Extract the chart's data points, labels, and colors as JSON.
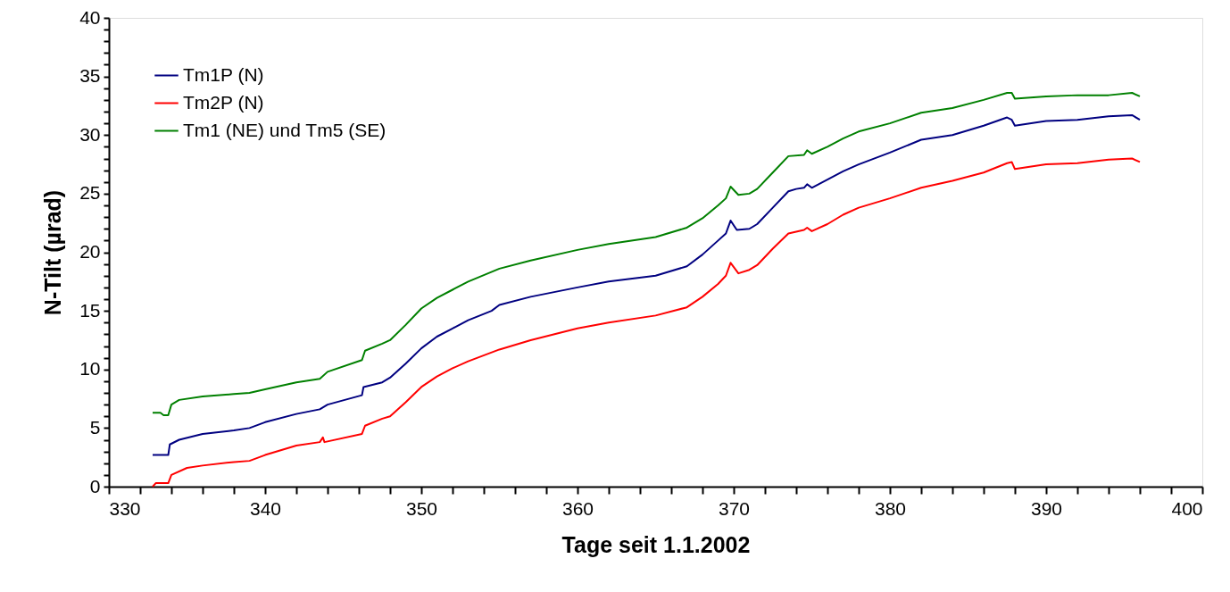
{
  "chart_data": {
    "type": "line",
    "xlabel": "Tage seit 1.1.2002",
    "ylabel": "N-Tilt (µrad)",
    "xlim": [
      330,
      400
    ],
    "ylim": [
      0,
      40
    ],
    "xticks": [
      330,
      {
        "value": 332,
        "label": null
      },
      {
        "value": 334,
        "label": null
      },
      {
        "value": 336,
        "label": null
      },
      {
        "value": 338,
        "label": null
      },
      340,
      {
        "value": 342,
        "label": null
      },
      {
        "value": 344,
        "label": null
      },
      {
        "value": 346,
        "label": null
      },
      {
        "value": 348,
        "label": null
      },
      350,
      {
        "value": 352,
        "label": null
      },
      {
        "value": 354,
        "label": null
      },
      {
        "value": 356,
        "label": null
      },
      {
        "value": 358,
        "label": null
      },
      360,
      {
        "value": 362,
        "label": null
      },
      {
        "value": 364,
        "label": null
      },
      {
        "value": 366,
        "label": null
      },
      {
        "value": 368,
        "label": null
      },
      370,
      {
        "value": 372,
        "label": null
      },
      {
        "value": 374,
        "label": null
      },
      {
        "value": 376,
        "label": null
      },
      {
        "value": 378,
        "label": null
      },
      380,
      {
        "value": 382,
        "label": null
      },
      {
        "value": 384,
        "label": null
      },
      {
        "value": 386,
        "label": null
      },
      {
        "value": 388,
        "label": null
      },
      390,
      {
        "value": 392,
        "label": null
      },
      {
        "value": 394,
        "label": null
      },
      {
        "value": 396,
        "label": null
      },
      {
        "value": 398,
        "label": null
      },
      400
    ],
    "yticks": [
      0,
      {
        "value": 1,
        "label": null
      },
      {
        "value": 2,
        "label": null
      },
      {
        "value": 3,
        "label": null
      },
      {
        "value": 4,
        "label": null
      },
      5,
      {
        "value": 6,
        "label": null
      },
      {
        "value": 7,
        "label": null
      },
      {
        "value": 8,
        "label": null
      },
      {
        "value": 9,
        "label": null
      },
      10,
      {
        "value": 11,
        "label": null
      },
      {
        "value": 12,
        "label": null
      },
      {
        "value": 13,
        "label": null
      },
      {
        "value": 14,
        "label": null
      },
      15,
      {
        "value": 16,
        "label": null
      },
      {
        "value": 17,
        "label": null
      },
      {
        "value": 18,
        "label": null
      },
      {
        "value": 19,
        "label": null
      },
      20,
      {
        "value": 21,
        "label": null
      },
      {
        "value": 22,
        "label": null
      },
      {
        "value": 23,
        "label": null
      },
      {
        "value": 24,
        "label": null
      },
      25,
      {
        "value": 26,
        "label": null
      },
      {
        "value": 27,
        "label": null
      },
      {
        "value": 28,
        "label": null
      },
      {
        "value": 29,
        "label": null
      },
      30,
      {
        "value": 31,
        "label": null
      },
      {
        "value": 32,
        "label": null
      },
      {
        "value": 33,
        "label": null
      },
      {
        "value": 34,
        "label": null
      },
      35,
      {
        "value": 36,
        "label": null
      },
      {
        "value": 37,
        "label": null
      },
      {
        "value": 38,
        "label": null
      },
      {
        "value": 39,
        "label": null
      },
      40
    ],
    "grid": false,
    "legend": "top left",
    "line_style": "solid",
    "marker": "none",
    "series": [
      {
        "name": "Tm1P (N)",
        "color": "#000080",
        "x": [
          332.8,
          333.8,
          333.9,
          334.5,
          336,
          338,
          339,
          340,
          342,
          343.5,
          344,
          346.2,
          346.3,
          347.5,
          348,
          349,
          350,
          351,
          352,
          353,
          354.5,
          355,
          357,
          360,
          362,
          365,
          367,
          368,
          369,
          369.5,
          369.8,
          370.2,
          371,
          371.5,
          372.5,
          373.5,
          374,
          374.5,
          374.7,
          375,
          376,
          377,
          378,
          380,
          382,
          384,
          386,
          387.5,
          387.8,
          388,
          390,
          392,
          394,
          395.5,
          396
        ],
        "values": [
          2.7,
          2.7,
          3.6,
          4.0,
          4.5,
          4.8,
          5.0,
          5.5,
          6.2,
          6.6,
          7.0,
          7.8,
          8.5,
          8.9,
          9.3,
          10.5,
          11.8,
          12.8,
          13.5,
          14.2,
          15.0,
          15.5,
          16.2,
          17.0,
          17.5,
          18.0,
          18.8,
          19.8,
          21.0,
          21.6,
          22.7,
          21.9,
          22.0,
          22.4,
          23.8,
          25.2,
          25.4,
          25.5,
          25.8,
          25.5,
          26.2,
          26.9,
          27.5,
          28.5,
          29.6,
          30.0,
          30.8,
          31.5,
          31.3,
          30.8,
          31.2,
          31.3,
          31.6,
          31.7,
          31.3
        ]
      },
      {
        "name": "Tm2P (N)",
        "color": "#ff0000",
        "x": [
          332.8,
          333,
          333.8,
          334,
          335,
          336,
          338,
          339,
          340,
          342,
          343.5,
          343.7,
          343.8,
          346.2,
          346.4,
          347.5,
          348,
          349,
          350,
          351,
          352,
          353,
          355,
          357,
          360,
          362,
          365,
          367,
          368,
          369,
          369.5,
          369.8,
          370.3,
          371,
          371.5,
          372.5,
          373.5,
          374.5,
          374.7,
          375,
          376,
          377,
          378,
          380,
          382,
          384,
          386,
          387.5,
          387.8,
          388,
          390,
          392,
          394,
          395.5,
          396
        ],
        "values": [
          0.0,
          0.3,
          0.3,
          1.0,
          1.6,
          1.8,
          2.1,
          2.2,
          2.7,
          3.5,
          3.8,
          4.2,
          3.8,
          4.5,
          5.2,
          5.8,
          6.0,
          7.2,
          8.5,
          9.4,
          10.1,
          10.7,
          11.7,
          12.5,
          13.5,
          14.0,
          14.6,
          15.3,
          16.2,
          17.3,
          18.0,
          19.1,
          18.2,
          18.5,
          18.9,
          20.3,
          21.6,
          21.9,
          22.1,
          21.8,
          22.4,
          23.2,
          23.8,
          24.6,
          25.5,
          26.1,
          26.8,
          27.6,
          27.7,
          27.1,
          27.5,
          27.6,
          27.9,
          28.0,
          27.7
        ]
      },
      {
        "name": "Tm1 (NE) und Tm5 (SE)",
        "color": "#008000",
        "x": [
          332.8,
          333.3,
          333.5,
          333.8,
          334,
          334.5,
          336,
          338,
          339,
          340,
          342,
          343.5,
          344,
          346.2,
          346.4,
          347.5,
          348,
          349,
          350,
          351,
          352,
          353,
          355,
          357,
          360,
          362,
          365,
          367,
          368,
          369,
          369.5,
          369.8,
          370.3,
          371,
          371.5,
          372.5,
          373.5,
          374.5,
          374.7,
          375,
          376,
          377,
          378,
          380,
          382,
          384,
          386,
          387.5,
          387.8,
          388,
          390,
          392,
          394,
          395.5,
          396
        ],
        "values": [
          6.3,
          6.3,
          6.1,
          6.1,
          7.0,
          7.4,
          7.7,
          7.9,
          8.0,
          8.3,
          8.9,
          9.2,
          9.8,
          10.8,
          11.6,
          12.2,
          12.5,
          13.8,
          15.2,
          16.1,
          16.8,
          17.5,
          18.6,
          19.3,
          20.2,
          20.7,
          21.3,
          22.1,
          22.9,
          24.0,
          24.6,
          25.6,
          24.9,
          25.0,
          25.4,
          26.8,
          28.2,
          28.3,
          28.7,
          28.4,
          29.0,
          29.7,
          30.3,
          31.0,
          31.9,
          32.3,
          33.0,
          33.6,
          33.6,
          33.1,
          33.3,
          33.4,
          33.4,
          33.6,
          33.3
        ]
      }
    ]
  }
}
